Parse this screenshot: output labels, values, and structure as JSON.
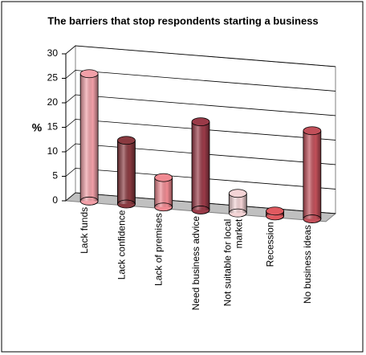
{
  "chart_data": {
    "type": "bar3d",
    "title": "The barriers that stop respondents starting a business",
    "y_label": "%",
    "categories": [
      "Lack funds",
      "Lack confidence",
      "Lack of premises",
      "Need business advice",
      "Not suitable for local market",
      "Recession",
      "No business ideas"
    ],
    "values": [
      26,
      13,
      6,
      18,
      4,
      1,
      18
    ],
    "colors": [
      "#f2a0a8",
      "#8a3a40",
      "#f08a92",
      "#9a3a48",
      "#f4d4d6",
      "#e05a60",
      "#c2505a"
    ],
    "ylim": [
      0,
      30
    ],
    "yticks": [
      0,
      5,
      10,
      15,
      20,
      25,
      30
    ],
    "grid": true
  }
}
